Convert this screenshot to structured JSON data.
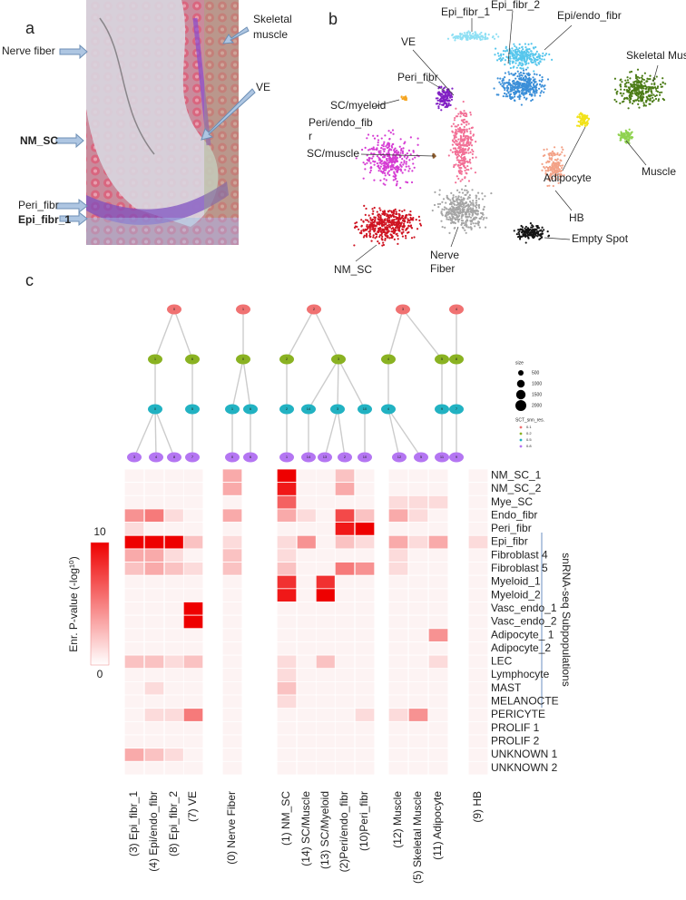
{
  "panel_a": {
    "letter": "a",
    "labels": {
      "nerve_fiber": "Nerve fiber",
      "skeletal_muscle": [
        "Skeletal",
        "muscle"
      ],
      "ve": "VE",
      "nm_sc": "NM_SC",
      "peri_fibr": "Peri_fibr",
      "epi_fibr_1": "Epi_fibr_1"
    }
  },
  "panel_b": {
    "letter": "b",
    "labels": [
      "Epi_fibr_1",
      "Epi_fibr_2",
      "Epi/endo_fibr",
      "VE",
      "Peri_fibr",
      "Skeletal Muscle",
      "SC/myeloid",
      [
        "Peri/endo_fib",
        "r"
      ],
      "SC/muscle",
      "Adipocyte",
      "Muscle",
      "HB",
      "Empty Spot",
      "NM_SC",
      [
        "Nerve",
        "Fiber"
      ]
    ]
  },
  "panel_c": {
    "letter": "c"
  },
  "cluster_tree": {
    "levels": [
      [
        "0",
        "1",
        "2",
        "3",
        "4"
      ],
      [
        "1",
        "6",
        "0",
        "2",
        "3",
        "4",
        "5",
        "8"
      ],
      [
        "0",
        "5",
        "1",
        "6",
        "2",
        "14",
        "3",
        "10",
        "4",
        "9",
        "7"
      ],
      [
        "3",
        "4",
        "8",
        "7",
        "0",
        "6",
        "1",
        "14",
        "13",
        "2",
        "10",
        "12",
        "5",
        "11",
        "9"
      ]
    ],
    "size_title": "size",
    "sizes": [
      500,
      1000,
      1500,
      2000
    ],
    "res_title": "SCT_snn_res.",
    "resolutions": [
      0.1,
      0.2,
      0.5,
      0.8
    ]
  },
  "chart_data": {
    "type": "heatmap",
    "x": [
      "(3) Epi_fibr_1",
      "(4) Epi/endo_fibr",
      "(8) Epi_fibr_2",
      "(7) VE",
      "(0) Nerve Fiber",
      "(1) NM_SC",
      "(14) SC/Muscle",
      "(13) SC/Myeloid",
      "(2)Peri/endo_fibr",
      "(10)Peri_fibr",
      "(12) Muscle",
      "(5) Skeletal Muscle",
      "(11) Adipocyte",
      "(9) HB"
    ],
    "y": [
      "NM_SC_1",
      "NM_SC_2",
      "Mye_SC",
      "Endo_fibr",
      "Peri_fibr",
      "Epi_fibr",
      "Fibroblast 4",
      "Fibroblast 5",
      "Myeloid_1",
      "Myeloid_2",
      "Vasc_endo_1",
      "Vasc_endo_2",
      "Adipocyte_ 1",
      "Adipocyte_2",
      "LEC",
      "Lymphocyte",
      "MAST",
      "MELANOCTE",
      "PERICYTE",
      "PROLIF 1",
      "PROLIF 2",
      "UNKNOWN 1",
      "UNKNOWN 2"
    ],
    "values": [
      [
        0,
        0,
        0,
        0,
        3,
        10,
        0,
        0,
        2,
        0,
        0,
        0,
        0,
        0
      ],
      [
        0,
        0,
        0,
        0,
        3,
        9,
        0,
        0,
        3,
        0,
        0,
        0,
        0,
        0
      ],
      [
        0,
        0,
        0,
        0,
        0,
        6,
        0,
        0,
        0,
        0,
        1,
        1,
        1,
        0
      ],
      [
        4,
        5,
        1,
        0,
        3,
        3,
        1,
        0,
        7,
        2,
        3,
        1,
        0,
        0
      ],
      [
        1,
        0,
        0,
        0,
        0,
        0,
        0,
        0,
        9,
        10,
        0,
        0,
        0,
        0
      ],
      [
        10,
        10,
        10,
        2,
        1,
        1,
        4,
        0,
        2,
        1,
        3,
        1,
        3,
        1
      ],
      [
        3,
        3,
        1,
        0,
        2,
        1,
        0,
        0,
        0,
        0,
        1,
        0,
        0,
        0
      ],
      [
        2,
        3,
        2,
        1,
        2,
        2,
        0,
        0,
        5,
        4,
        1,
        0,
        0,
        0
      ],
      [
        0,
        0,
        0,
        0,
        0,
        8,
        0,
        8,
        0,
        0,
        0,
        0,
        0,
        0
      ],
      [
        0,
        0,
        0,
        0,
        0,
        9,
        0,
        10,
        0,
        0,
        0,
        0,
        0,
        0
      ],
      [
        0,
        0,
        0,
        10,
        0,
        0,
        0,
        0,
        0,
        0,
        0,
        0,
        0,
        0
      ],
      [
        0,
        0,
        0,
        10,
        0,
        0,
        0,
        0,
        0,
        0,
        0,
        0,
        0,
        0
      ],
      [
        0,
        0,
        0,
        0,
        0,
        0,
        0,
        0,
        0,
        0,
        0,
        0,
        4,
        0
      ],
      [
        0,
        0,
        0,
        0,
        0,
        0,
        0,
        0,
        0,
        0,
        0,
        0,
        0,
        0
      ],
      [
        2,
        2,
        1,
        2,
        0,
        1,
        0,
        2,
        0,
        0,
        0,
        0,
        1,
        0
      ],
      [
        0,
        0,
        0,
        0,
        0,
        1,
        0,
        0,
        0,
        0,
        0,
        0,
        0,
        0
      ],
      [
        0,
        1,
        0,
        0,
        0,
        2,
        0,
        0,
        0,
        0,
        0,
        0,
        0,
        0
      ],
      [
        0,
        0,
        0,
        0,
        0,
        1,
        0,
        0,
        0,
        0,
        0,
        0,
        0,
        0
      ],
      [
        0,
        1,
        1,
        5,
        0,
        0,
        0,
        0,
        0,
        1,
        1,
        4,
        0,
        0
      ],
      [
        0,
        0,
        0,
        0,
        0,
        0,
        0,
        0,
        0,
        0,
        0,
        0,
        0,
        0
      ],
      [
        0,
        0,
        0,
        0,
        0,
        0,
        0,
        0,
        0,
        0,
        0,
        0,
        0,
        0
      ],
      [
        3,
        2,
        1,
        0,
        0,
        0,
        0,
        0,
        0,
        0,
        0,
        0,
        0,
        0
      ],
      [
        0,
        0,
        0,
        0,
        0,
        0,
        0,
        0,
        0,
        0,
        0,
        0,
        0,
        0
      ]
    ],
    "zlim": [
      0,
      10
    ],
    "zticks": [
      10,
      0
    ],
    "colorbar_label": "Enr. P-value (-log¹⁰)",
    "color_low": "#fdf3f3",
    "color_high": "#ee0000",
    "y_axis_title": "snRNA-seq Subpopulations"
  }
}
